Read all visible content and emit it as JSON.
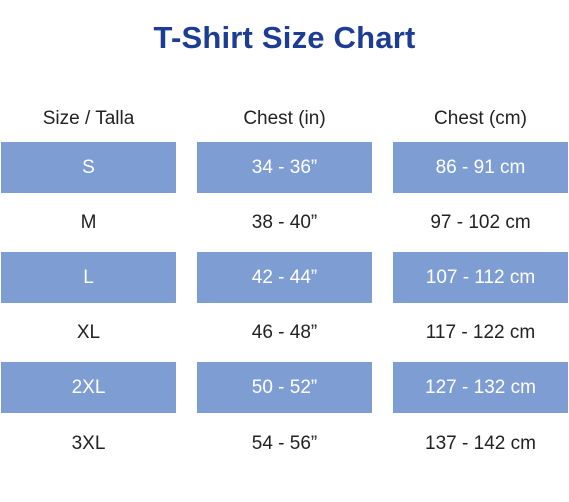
{
  "title": "T-Shirt Size Chart",
  "colors": {
    "title": "#1d3c93",
    "shaded_row": "#7e9ed3",
    "shaded_text": "#ffffff",
    "text": "#222222"
  },
  "table": {
    "headers": [
      "Size / Talla",
      "Chest (in)",
      "Chest (cm)"
    ],
    "rows": [
      {
        "size": "S",
        "chest_in": "34 - 36”",
        "chest_cm": "86 - 91 cm"
      },
      {
        "size": "M",
        "chest_in": "38 - 40”",
        "chest_cm": "97 - 102 cm"
      },
      {
        "size": "L",
        "chest_in": "42 - 44”",
        "chest_cm": "107 - 112 cm"
      },
      {
        "size": "XL",
        "chest_in": "46 - 48”",
        "chest_cm": "117 - 122 cm"
      },
      {
        "size": "2XL",
        "chest_in": "50 - 52”",
        "chest_cm": "127 - 132 cm"
      },
      {
        "size": "3XL",
        "chest_in": "54 - 56”",
        "chest_cm": "137 - 142 cm"
      }
    ]
  }
}
